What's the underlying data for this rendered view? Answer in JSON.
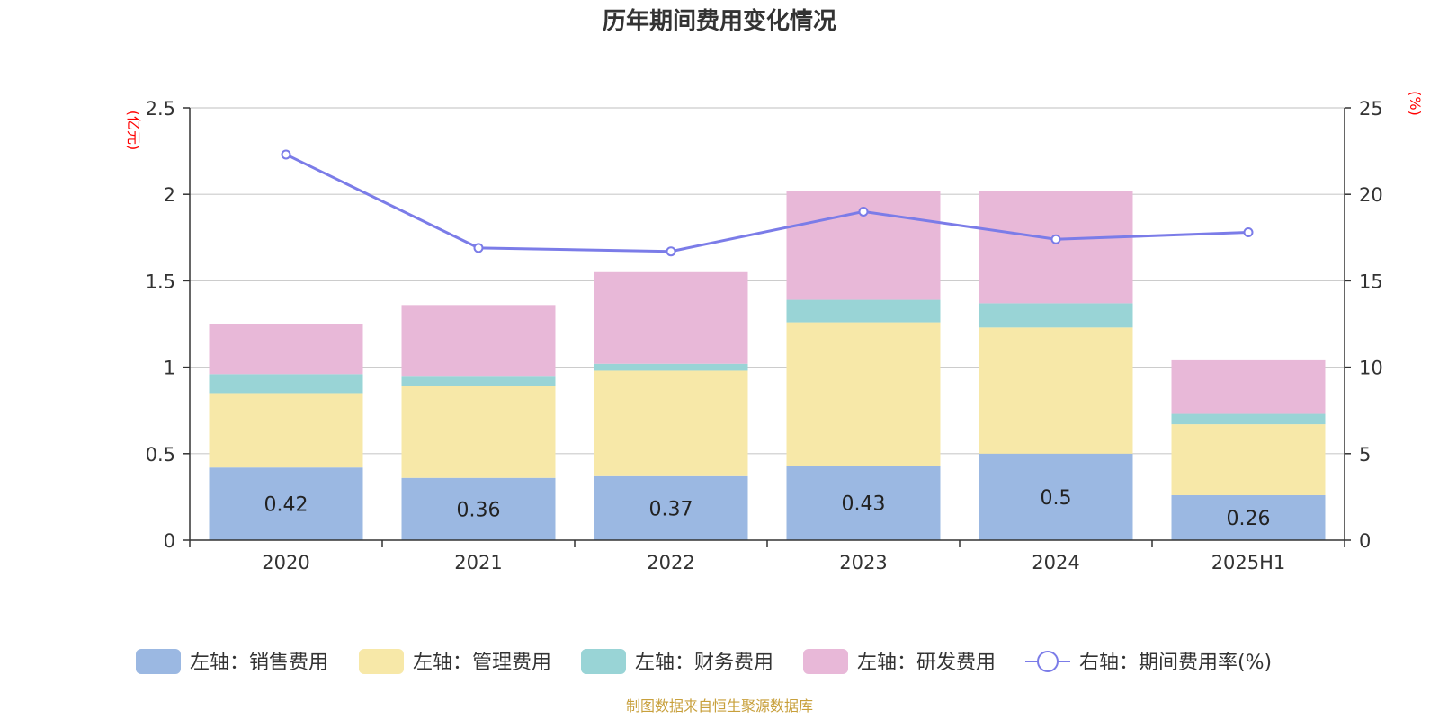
{
  "chart_data": {
    "type": "bar",
    "title": "历年期间费用变化情况",
    "left_unit": "(亿元)",
    "right_unit": "(%)",
    "categories": [
      "2020",
      "2021",
      "2022",
      "2023",
      "2024",
      "2025H1"
    ],
    "left_axis": {
      "min": 0,
      "max": 2.5,
      "ticks": [
        0,
        0.5,
        1,
        1.5,
        2,
        2.5
      ],
      "tick_labels": [
        "0",
        "0.5",
        "1",
        "1.5",
        "2",
        "2.5"
      ]
    },
    "right_axis": {
      "min": 0,
      "max": 25,
      "ticks": [
        0,
        5,
        10,
        15,
        20,
        25
      ],
      "tick_labels": [
        "0",
        "5",
        "10",
        "15",
        "20",
        "25"
      ]
    },
    "grid": true,
    "legend_position": "bottom",
    "series": [
      {
        "name": "左轴：销售费用",
        "type": "bar",
        "axis": "left",
        "color": "#9bb8e2",
        "values": [
          0.42,
          0.36,
          0.37,
          0.43,
          0.5,
          0.26
        ],
        "labels": [
          "0.42",
          "0.36",
          "0.37",
          "0.43",
          "0.5",
          "0.26"
        ]
      },
      {
        "name": "左轴：管理费用",
        "type": "bar",
        "axis": "left",
        "color": "#f7e8a8",
        "values": [
          0.43,
          0.53,
          0.61,
          0.83,
          0.73,
          0.41
        ]
      },
      {
        "name": "左轴：财务费用",
        "type": "bar",
        "axis": "left",
        "color": "#99d4d6",
        "values": [
          0.11,
          0.06,
          0.04,
          0.13,
          0.14,
          0.06
        ]
      },
      {
        "name": "左轴：研发费用",
        "type": "bar",
        "axis": "left",
        "color": "#e8b8d8",
        "values": [
          0.29,
          0.41,
          0.53,
          0.63,
          0.65,
          0.31
        ]
      },
      {
        "name": "右轴：期间费用率(%)",
        "type": "line",
        "axis": "right",
        "color": "#7b7ce8",
        "values": [
          22.3,
          16.9,
          16.7,
          19,
          17.4,
          17.8
        ]
      }
    ],
    "source": "制图数据来自恒生聚源数据库"
  }
}
